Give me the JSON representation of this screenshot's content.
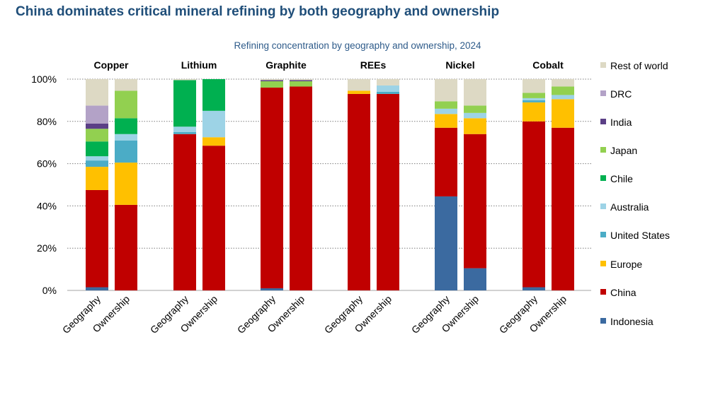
{
  "title": "China dominates critical mineral refining by both geography and ownership",
  "chart_data": {
    "type": "bar",
    "stacked": true,
    "subtitle": "Refining concentration by geography and ownership, 2024",
    "ylim": [
      0,
      100
    ],
    "yticks": [
      "0%",
      "20%",
      "40%",
      "60%",
      "80%",
      "100%"
    ],
    "grid": true,
    "legend_position": "right",
    "groups": [
      "Copper",
      "Lithium",
      "Graphite",
      "REEs",
      "Nickel",
      "Cobalt"
    ],
    "bar_labels": [
      "Geography",
      "Ownership"
    ],
    "series_order": [
      "Indonesia",
      "China",
      "Europe",
      "United States",
      "Australia",
      "Chile",
      "Japan",
      "India",
      "DRC",
      "Rest of world"
    ],
    "colors": {
      "Indonesia": "#3b6aa0",
      "China": "#c00000",
      "Europe": "#ffc000",
      "United States": "#4bacc6",
      "Australia": "#9dd3e6",
      "Chile": "#00b050",
      "Japan": "#92d050",
      "India": "#5b3f86",
      "DRC": "#b3a2c7",
      "Rest of world": "#ddd9c4"
    },
    "bars": [
      {
        "group": "Copper",
        "label": "Geography",
        "values": {
          "Indonesia": 1.5,
          "China": 46,
          "Europe": 11,
          "United States": 3,
          "Australia": 2,
          "Chile": 7,
          "Japan": 6,
          "India": 2.5,
          "DRC": 8.5,
          "Rest of world": 12.5
        }
      },
      {
        "group": "Copper",
        "label": "Ownership",
        "values": {
          "Indonesia": 0,
          "China": 40.5,
          "Europe": 20,
          "United States": 10.5,
          "Australia": 3,
          "Chile": 7.5,
          "Japan": 13,
          "India": 0,
          "DRC": 0,
          "Rest of world": 5.5
        }
      },
      {
        "group": "Lithium",
        "label": "Geography",
        "values": {
          "Indonesia": 0,
          "China": 74,
          "Europe": 0,
          "United States": 1,
          "Australia": 2.5,
          "Chile": 22,
          "Japan": 0,
          "India": 0,
          "DRC": 0,
          "Rest of world": 0.5
        }
      },
      {
        "group": "Lithium",
        "label": "Ownership",
        "values": {
          "Indonesia": 0,
          "China": 68.5,
          "Europe": 4,
          "United States": 0,
          "Australia": 12.5,
          "Chile": 15,
          "Japan": 0,
          "India": 0,
          "DRC": 0,
          "Rest of world": 0
        }
      },
      {
        "group": "Graphite",
        "label": "Geography",
        "values": {
          "Indonesia": 1,
          "China": 95,
          "Europe": 0,
          "United States": 0,
          "Australia": 0,
          "Chile": 0,
          "Japan": 3,
          "India": 0.5,
          "DRC": 0,
          "Rest of world": 0.5
        }
      },
      {
        "group": "Graphite",
        "label": "Ownership",
        "values": {
          "Indonesia": 0,
          "China": 96.5,
          "Europe": 0,
          "United States": 0,
          "Australia": 0,
          "Chile": 0,
          "Japan": 2.5,
          "India": 0.5,
          "DRC": 0,
          "Rest of world": 0.5
        }
      },
      {
        "group": "REEs",
        "label": "Geography",
        "values": {
          "Indonesia": 0,
          "China": 93,
          "Europe": 1.5,
          "United States": 0,
          "Australia": 0,
          "Chile": 0,
          "Japan": 0,
          "India": 0,
          "DRC": 0,
          "Rest of world": 5.5
        }
      },
      {
        "group": "REEs",
        "label": "Ownership",
        "values": {
          "Indonesia": 0,
          "China": 93,
          "Europe": 0,
          "United States": 1,
          "Australia": 3,
          "Chile": 0,
          "Japan": 0,
          "India": 0,
          "DRC": 0,
          "Rest of world": 3
        }
      },
      {
        "group": "Nickel",
        "label": "Geography",
        "values": {
          "Indonesia": 44.5,
          "China": 32.5,
          "Europe": 6.5,
          "United States": 0,
          "Australia": 2.5,
          "Chile": 0,
          "Japan": 3.5,
          "India": 0,
          "DRC": 0,
          "Rest of world": 10.5
        }
      },
      {
        "group": "Nickel",
        "label": "Ownership",
        "values": {
          "Indonesia": 10.5,
          "China": 63.5,
          "Europe": 7.5,
          "United States": 0,
          "Australia": 2.5,
          "Chile": 0,
          "Japan": 3.5,
          "India": 0,
          "DRC": 0,
          "Rest of world": 12.5
        }
      },
      {
        "group": "Cobalt",
        "label": "Geography",
        "values": {
          "Indonesia": 1.5,
          "China": 78.5,
          "Europe": 9,
          "United States": 1,
          "Australia": 1,
          "Chile": 0,
          "Japan": 2.5,
          "India": 0,
          "DRC": 0,
          "Rest of world": 6.5
        }
      },
      {
        "group": "Cobalt",
        "label": "Ownership",
        "values": {
          "Indonesia": 0,
          "China": 77,
          "Europe": 13.5,
          "United States": 0,
          "Australia": 2,
          "Chile": 0,
          "Japan": 4,
          "India": 0,
          "DRC": 0,
          "Rest of world": 3.5
        }
      }
    ],
    "legend": [
      "Rest of world",
      "DRC",
      "India",
      "Japan",
      "Chile",
      "Australia",
      "United States",
      "Europe",
      "China",
      "Indonesia"
    ]
  }
}
